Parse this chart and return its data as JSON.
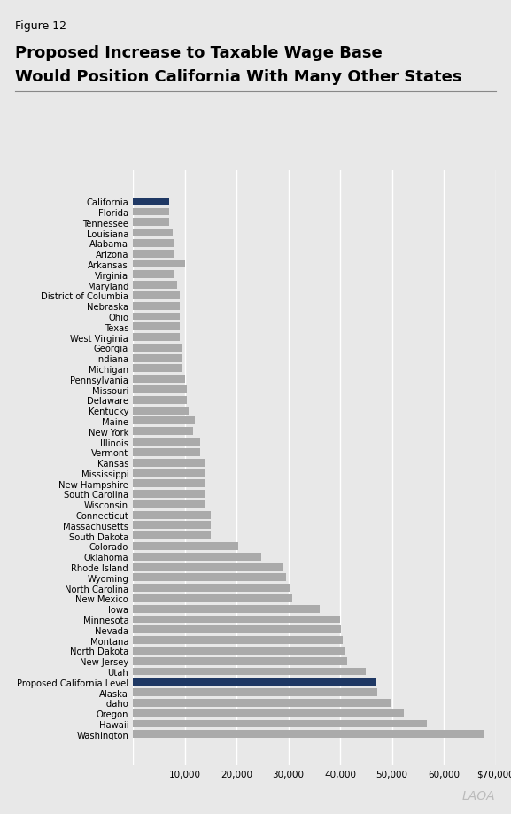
{
  "figure_label": "Figure 12",
  "title_line1": "Proposed Increase to Taxable Wage Base",
  "title_line2": "Would Position California With Many Other States",
  "background_color": "#e8e8e8",
  "bar_color_default": "#aaaaaa",
  "bar_color_highlight": "#1f3864",
  "categories": [
    "California",
    "Florida",
    "Tennessee",
    "Louisiana",
    "Alabama",
    "Arizona",
    "Arkansas",
    "Virginia",
    "Maryland",
    "District of Columbia",
    "Nebraska",
    "Ohio",
    "Texas",
    "West Virginia",
    "Georgia",
    "Indiana",
    "Michigan",
    "Pennsylvania",
    "Missouri",
    "Delaware",
    "Kentucky",
    "Maine",
    "New York",
    "Illinois",
    "Vermont",
    "Kansas",
    "Mississippi",
    "New Hampshire",
    "South Carolina",
    "Wisconsin",
    "Connecticut",
    "Massachusetts",
    "South Dakota",
    "Colorado",
    "Oklahoma",
    "Rhode Island",
    "Wyoming",
    "North Carolina",
    "New Mexico",
    "Iowa",
    "Minnesota",
    "Nevada",
    "Montana",
    "North Dakota",
    "New Jersey",
    "Utah",
    "Proposed California Level",
    "Alaska",
    "Idaho",
    "Oregon",
    "Hawaii",
    "Washington"
  ],
  "values": [
    7000,
    7000,
    7000,
    7700,
    8000,
    8000,
    10000,
    8000,
    8500,
    9000,
    9000,
    9000,
    9000,
    9000,
    9500,
    9500,
    9500,
    10000,
    10500,
    10500,
    10800,
    12000,
    11600,
    12960,
    13000,
    14000,
    14000,
    14000,
    14000,
    14000,
    15000,
    15000,
    15000,
    20400,
    24800,
    28800,
    29500,
    30300,
    30800,
    36000,
    40000,
    40100,
    40500,
    40800,
    41400,
    44900,
    46800,
    47100,
    49900,
    52300,
    56700,
    67600
  ],
  "highlight_indices": [
    0,
    46
  ],
  "xlim": [
    0,
    70000
  ],
  "xtick_values": [
    0,
    10000,
    20000,
    30000,
    40000,
    50000,
    60000,
    70000
  ],
  "xtick_labels": [
    "",
    "10,000",
    "20,000",
    "30,000",
    "40,000",
    "50,000",
    "60,000",
    "$70,000"
  ],
  "bar_height": 0.75,
  "lao_watermark": "LAOA"
}
